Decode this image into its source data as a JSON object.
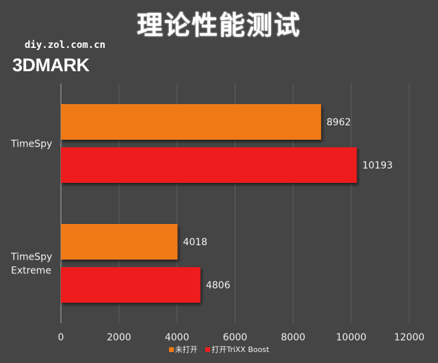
{
  "chart_title": "理论性能测试",
  "watermark": "diy.zol.com.cn",
  "benchmark_logo": "3DMARK",
  "colors": {
    "series_off": "#f07a14",
    "series_on": "#ee1d1d",
    "grid": "#5e5e5e",
    "axis": "#9a9a9a",
    "text": "#ffffff",
    "background": "#454545"
  },
  "chart_data": {
    "type": "bar",
    "orientation": "horizontal",
    "title": "理论性能测试",
    "categories": [
      "TimeSpy",
      "TimeSpy Extreme"
    ],
    "category_lines": [
      [
        "TimeSpy"
      ],
      [
        "TimeSpy",
        "Extreme"
      ]
    ],
    "series": [
      {
        "name": "未打开",
        "values": [
          8962,
          4018
        ]
      },
      {
        "name": "打开TriXX Boost",
        "values": [
          10193,
          4806
        ]
      }
    ],
    "xlim": [
      0,
      12000
    ],
    "xticks": [
      0,
      2000,
      4000,
      6000,
      8000,
      10000,
      12000
    ],
    "xlabel": "",
    "ylabel": "",
    "grid": true,
    "legend_position": "bottom"
  }
}
